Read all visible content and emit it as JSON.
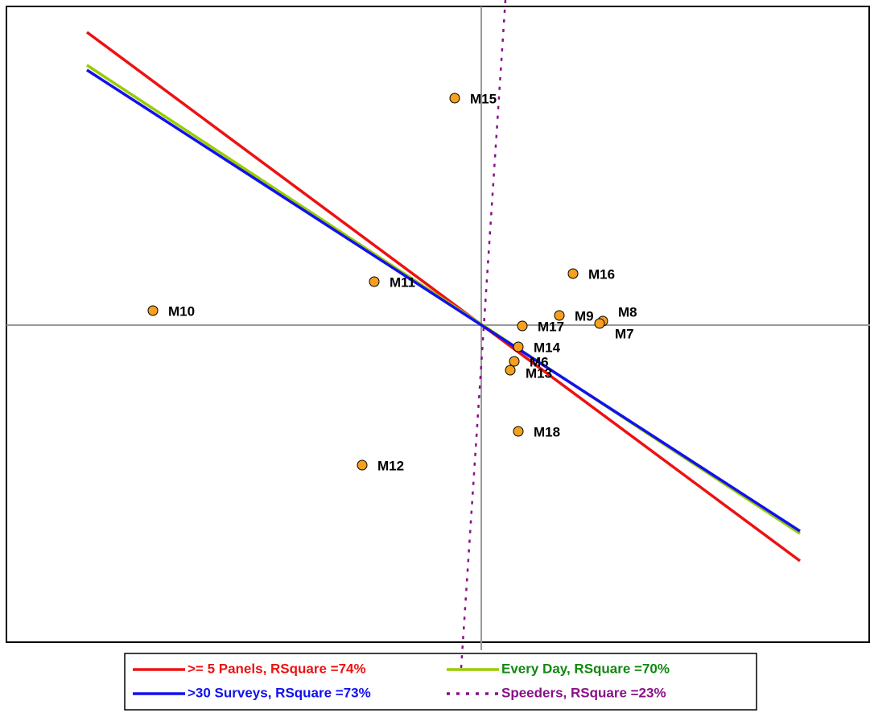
{
  "chart_data": {
    "type": "scatter",
    "xlim": [
      -5.9,
      4.83
    ],
    "ylim": [
      -3.94,
      3.96
    ],
    "points": {
      "color": "#f5a01e",
      "labels": [
        "M15",
        "M16",
        "M11",
        "M10",
        "M9",
        "M8",
        "M7",
        "M17",
        "M14",
        "M6",
        "M13",
        "M18",
        "M12"
      ],
      "x": [
        -0.33,
        1.14,
        -1.33,
        -4.08,
        0.97,
        1.51,
        1.47,
        0.51,
        0.46,
        0.41,
        0.36,
        0.46,
        -1.48
      ],
      "y": [
        2.82,
        0.64,
        0.54,
        0.18,
        0.12,
        0.05,
        0.02,
        -0.01,
        -0.27,
        -0.45,
        -0.56,
        -1.32,
        -1.74
      ]
    },
    "series": [
      {
        "name": ">= 5 Panels, RSquare =74%",
        "color": "#ee1111",
        "dashed": false,
        "x": [
          -4.9,
          3.96
        ],
        "y": [
          3.64,
          -2.93
        ]
      },
      {
        "name": "Every Day, RSquare =70%",
        "color": "#99cc00",
        "dashed": false,
        "label_color": "#118811",
        "x": [
          -4.9,
          3.96
        ],
        "y": [
          3.23,
          -2.59
        ]
      },
      {
        "name": ">30 Surveys, RSquare =73%",
        "color": "#1111ee",
        "dashed": false,
        "x": [
          -4.9,
          3.96
        ],
        "y": [
          3.17,
          -2.56
        ]
      },
      {
        "name": "Speeders, RSquare =23%",
        "color": "#881188",
        "dashed": true,
        "x": [
          0.3,
          -0.25
        ],
        "y": [
          4.04,
          -4.26
        ]
      }
    ]
  }
}
